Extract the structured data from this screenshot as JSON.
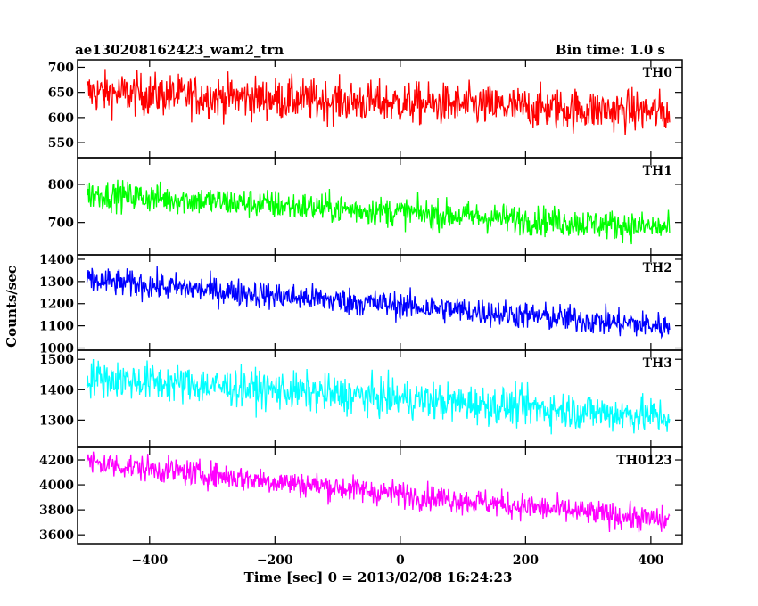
{
  "header": {
    "left_title": "ae130208162423_wam2_trn",
    "right_title": "Bin time: 1.0 s"
  },
  "chart_data": {
    "type": "line",
    "xlabel": "Time [sec] 0 = 2013/02/08 16:24:23",
    "ylabel": "Counts/sec",
    "xlim": [
      -515,
      450
    ],
    "x_ticks": [
      -400,
      -200,
      0,
      200,
      400
    ],
    "x_range": [
      -500,
      430
    ],
    "panels": [
      {
        "name": "TH0",
        "color": "#ff0000",
        "ylim": [
          520,
          715
        ],
        "y_ticks": [
          550,
          600,
          650,
          700
        ],
        "trend": [
          650,
          610
        ],
        "noise": 30
      },
      {
        "name": "TH1",
        "color": "#00ff00",
        "ylim": [
          615,
          870
        ],
        "y_ticks": [
          700,
          800
        ],
        "trend": [
          775,
          685
        ],
        "noise": 28
      },
      {
        "name": "TH2",
        "color": "#0000ff",
        "ylim": [
          990,
          1420
        ],
        "y_ticks": [
          1000,
          1100,
          1200,
          1300,
          1400
        ],
        "trend": [
          1305,
          1095
        ],
        "noise": 45
      },
      {
        "name": "TH3",
        "color": "#00ffff",
        "ylim": [
          1210,
          1530
        ],
        "y_ticks": [
          1300,
          1400,
          1500
        ],
        "trend": [
          1440,
          1310
        ],
        "noise": 45
      },
      {
        "name": "TH0123",
        "color": "#ff00ff",
        "ylim": [
          3530,
          4300
        ],
        "y_ticks": [
          3600,
          3800,
          4000,
          4200
        ],
        "trend": [
          4180,
          3710
        ],
        "noise": 75
      }
    ]
  }
}
